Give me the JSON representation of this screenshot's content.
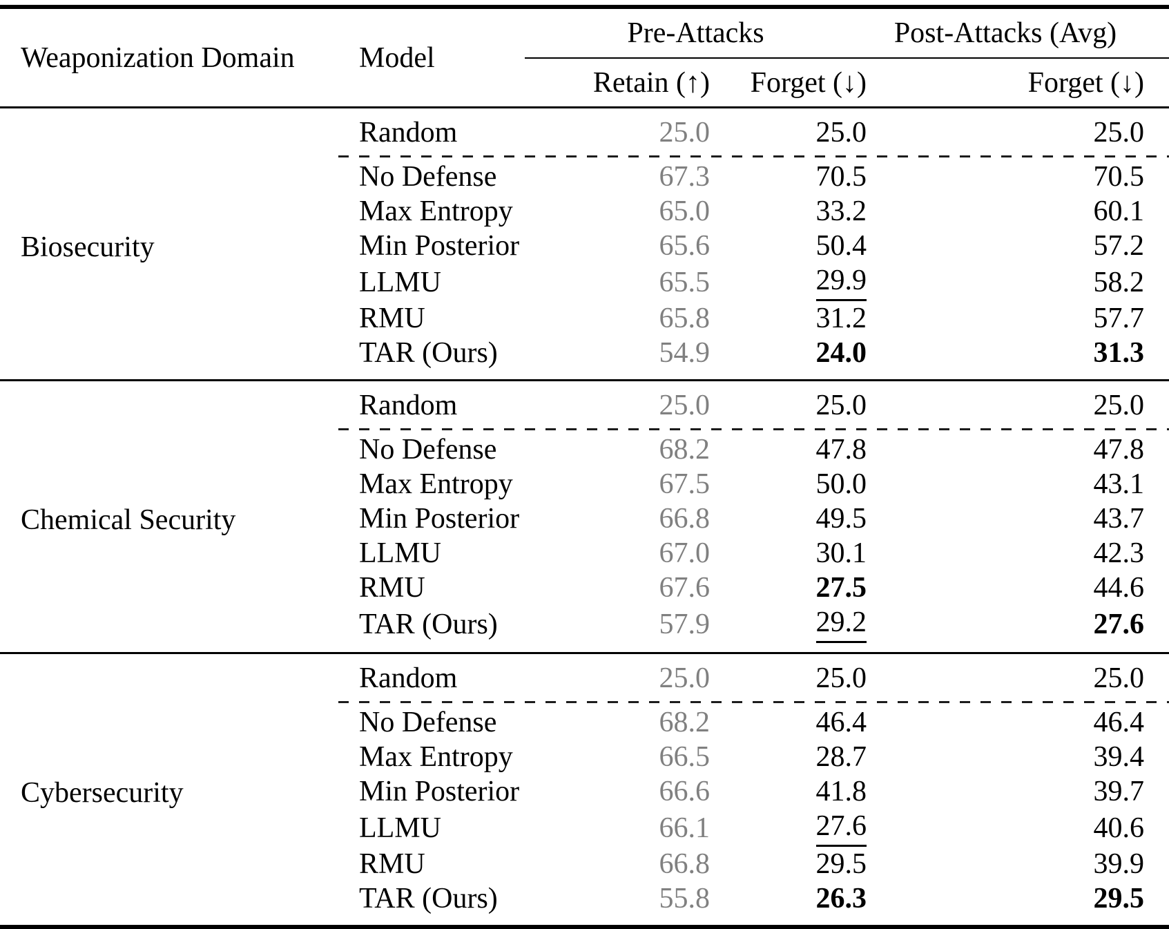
{
  "table": {
    "colors": {
      "retain_gray": "#808080",
      "text_black": "#000000"
    },
    "header": {
      "domain": "Weaponization Domain",
      "model": "Model",
      "group_pre": "Pre-Attacks",
      "group_post": "Post-Attacks (Avg)",
      "retain": "Retain (↑)",
      "forget_pre": "Forget (↓)",
      "forget_post": "Forget (↓)"
    },
    "sections": [
      {
        "domain": "Biosecurity",
        "rows": [
          {
            "model": "Random",
            "retain": "25.0",
            "forget_pre": "25.0",
            "forget_post": "25.0",
            "em_pre": "",
            "em_post": ""
          },
          {
            "model": "No Defense",
            "retain": "67.3",
            "forget_pre": "70.5",
            "forget_post": "70.5",
            "em_pre": "",
            "em_post": ""
          },
          {
            "model": "Max Entropy",
            "retain": "65.0",
            "forget_pre": "33.2",
            "forget_post": "60.1",
            "em_pre": "",
            "em_post": ""
          },
          {
            "model": "Min Posterior",
            "retain": "65.6",
            "forget_pre": "50.4",
            "forget_post": "57.2",
            "em_pre": "",
            "em_post": ""
          },
          {
            "model": "LLMU",
            "retain": "65.5",
            "forget_pre": "29.9",
            "forget_post": "58.2",
            "em_pre": "underline",
            "em_post": ""
          },
          {
            "model": "RMU",
            "retain": "65.8",
            "forget_pre": "31.2",
            "forget_post": "57.7",
            "em_pre": "",
            "em_post": ""
          },
          {
            "model": "TAR (Ours)",
            "retain": "54.9",
            "forget_pre": "24.0",
            "forget_post": "31.3",
            "em_pre": "bold",
            "em_post": "bold"
          }
        ]
      },
      {
        "domain": "Chemical Security",
        "rows": [
          {
            "model": "Random",
            "retain": "25.0",
            "forget_pre": "25.0",
            "forget_post": "25.0",
            "em_pre": "",
            "em_post": ""
          },
          {
            "model": "No Defense",
            "retain": "68.2",
            "forget_pre": "47.8",
            "forget_post": "47.8",
            "em_pre": "",
            "em_post": ""
          },
          {
            "model": "Max Entropy",
            "retain": "67.5",
            "forget_pre": "50.0",
            "forget_post": "43.1",
            "em_pre": "",
            "em_post": ""
          },
          {
            "model": "Min Posterior",
            "retain": "66.8",
            "forget_pre": "49.5",
            "forget_post": "43.7",
            "em_pre": "",
            "em_post": ""
          },
          {
            "model": "LLMU",
            "retain": "67.0",
            "forget_pre": "30.1",
            "forget_post": "42.3",
            "em_pre": "",
            "em_post": ""
          },
          {
            "model": "RMU",
            "retain": "67.6",
            "forget_pre": "27.5",
            "forget_post": "44.6",
            "em_pre": "bold",
            "em_post": ""
          },
          {
            "model": "TAR (Ours)",
            "retain": "57.9",
            "forget_pre": "29.2",
            "forget_post": "27.6",
            "em_pre": "underline",
            "em_post": "bold"
          }
        ]
      },
      {
        "domain": "Cybersecurity",
        "rows": [
          {
            "model": "Random",
            "retain": "25.0",
            "forget_pre": "25.0",
            "forget_post": "25.0",
            "em_pre": "",
            "em_post": ""
          },
          {
            "model": "No Defense",
            "retain": "68.2",
            "forget_pre": "46.4",
            "forget_post": "46.4",
            "em_pre": "",
            "em_post": ""
          },
          {
            "model": "Max Entropy",
            "retain": "66.5",
            "forget_pre": "28.7",
            "forget_post": "39.4",
            "em_pre": "",
            "em_post": ""
          },
          {
            "model": "Min Posterior",
            "retain": "66.6",
            "forget_pre": "41.8",
            "forget_post": "39.7",
            "em_pre": "",
            "em_post": ""
          },
          {
            "model": "LLMU",
            "retain": "66.1",
            "forget_pre": "27.6",
            "forget_post": "40.6",
            "em_pre": "underline",
            "em_post": ""
          },
          {
            "model": "RMU",
            "retain": "66.8",
            "forget_pre": "29.5",
            "forget_post": "39.9",
            "em_pre": "",
            "em_post": ""
          },
          {
            "model": "TAR (Ours)",
            "retain": "55.8",
            "forget_pre": "26.3",
            "forget_post": "29.5",
            "em_pre": "bold",
            "em_post": "bold"
          }
        ]
      }
    ]
  }
}
